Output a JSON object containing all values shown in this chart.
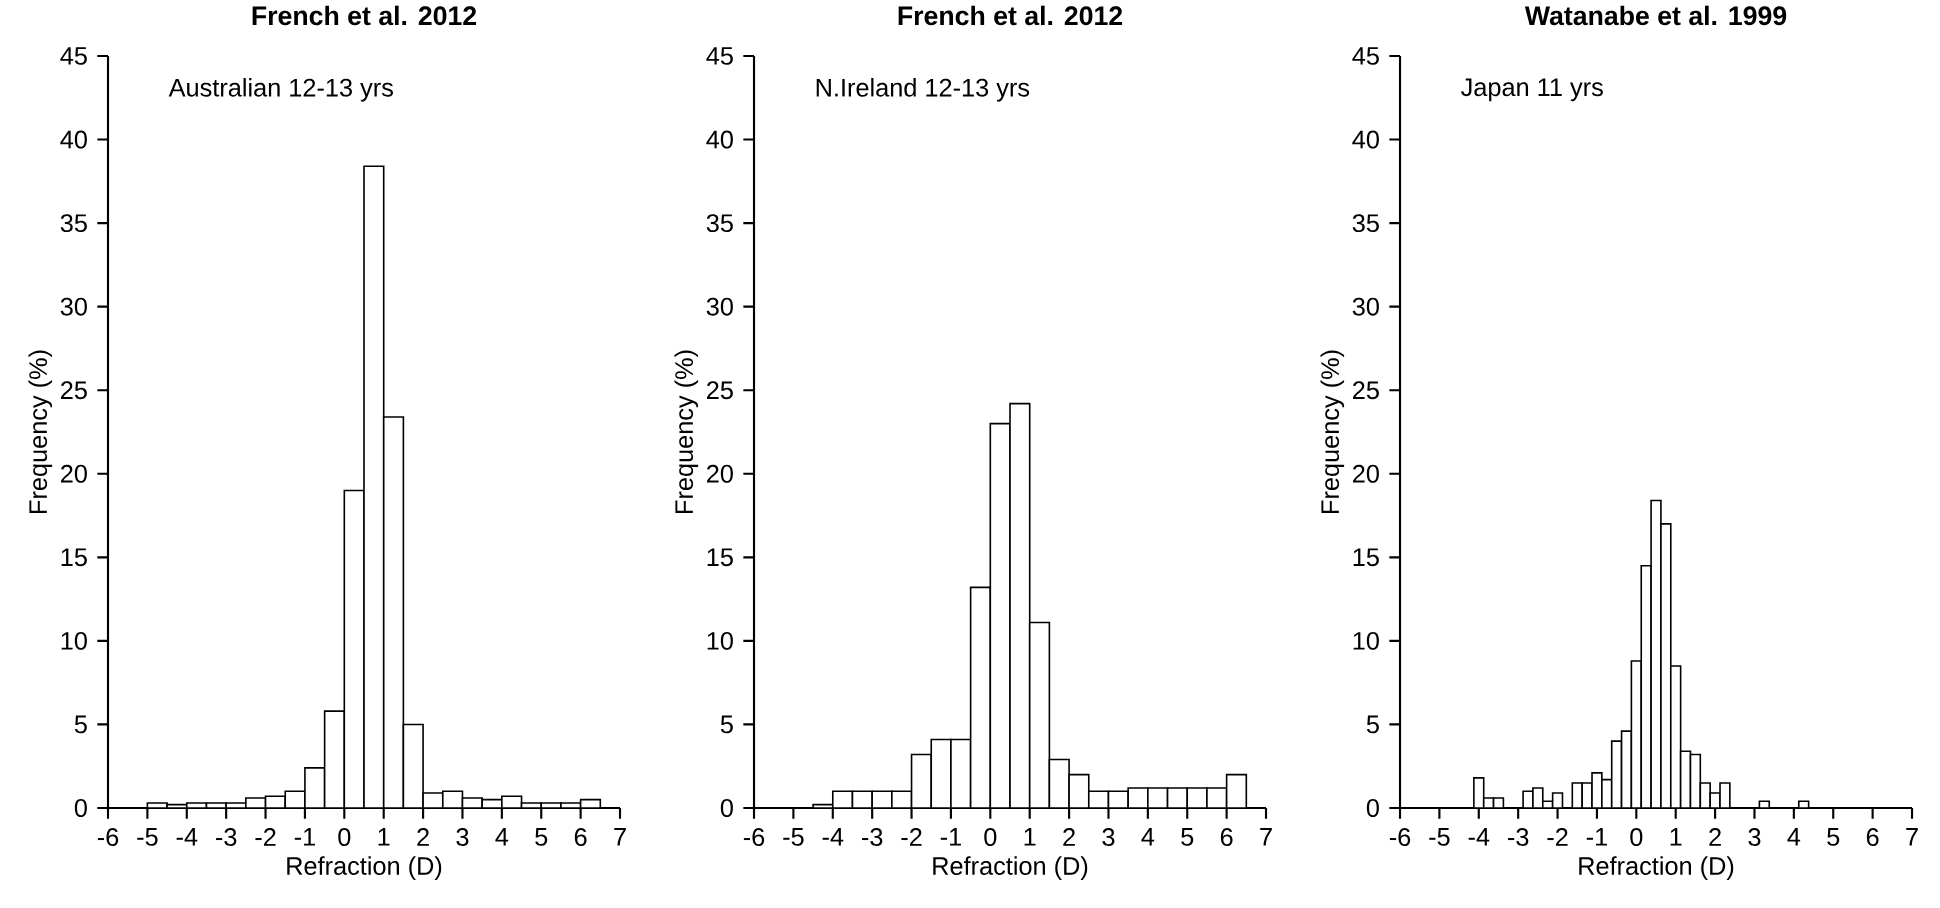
{
  "chart_data": [
    {
      "type": "histogram",
      "title": "French et al. 2012",
      "annotations": [
        "Australian 12-13 yrs"
      ],
      "xlabel": "Refraction (D)",
      "ylabel": "Frequency (%)",
      "color": "#ffffff",
      "bins": [
        -5,
        -4.5,
        -4,
        -3.5,
        -3,
        -2.5,
        -2,
        -1.5,
        -1,
        -0.5,
        0,
        0.5,
        1,
        1.5,
        2,
        2.5,
        3,
        3.5,
        4,
        4.5,
        5,
        5.5,
        6,
        6.5
      ],
      "values": [
        0.3,
        0.2,
        0.3,
        0.3,
        0.3,
        0.6,
        0.7,
        1.0,
        2.4,
        5.8,
        19.0,
        38.4,
        23.4,
        5.0,
        0.9,
        1.0,
        0.6,
        0.5,
        0.7,
        0.3,
        0.3,
        0.3,
        0.5
      ],
      "xlim": [
        -6,
        7
      ],
      "ylim": [
        0,
        45
      ],
      "xticks": [
        -6,
        -5,
        -4,
        -3,
        -2,
        -1,
        0,
        1,
        2,
        3,
        4,
        5,
        6,
        7
      ],
      "yticks": [
        0,
        5,
        10,
        15,
        20,
        25,
        30,
        35,
        40,
        45
      ]
    },
    {
      "type": "histogram",
      "title": "French et al. 2012",
      "annotations": [
        "N.Ireland 12-13 yrs"
      ],
      "xlabel": "Refraction (D)",
      "ylabel": "Frequency (%)",
      "color": "#ffffff",
      "bins": [
        -4.5,
        -4,
        -3.5,
        -3,
        -2.5,
        -2,
        -1.5,
        -1,
        -0.5,
        0,
        0.5,
        1,
        1.5,
        2,
        2.5,
        3,
        3.5,
        4,
        4.5,
        5,
        5.5,
        6,
        6.5
      ],
      "values": [
        0.2,
        1.0,
        1.0,
        1.0,
        1.0,
        3.2,
        4.1,
        4.1,
        13.2,
        23.0,
        24.2,
        11.1,
        2.9,
        2.0,
        1.0,
        1.0,
        1.2,
        1.2,
        1.2,
        1.2,
        1.2,
        2.0
      ],
      "xlim": [
        -6,
        7
      ],
      "ylim": [
        0,
        45
      ],
      "xticks": [
        -6,
        -5,
        -4,
        -3,
        -2,
        -1,
        0,
        1,
        2,
        3,
        4,
        5,
        6,
        7
      ],
      "yticks": [
        0,
        5,
        10,
        15,
        20,
        25,
        30,
        35,
        40,
        45
      ]
    },
    {
      "type": "histogram",
      "title": "Watanabe et al. 1999",
      "annotations": [
        "Japan 11 yrs"
      ],
      "xlabel": "Refraction (D)",
      "ylabel": "Frequency (%)",
      "color": "#ffffff",
      "bins": [
        -4.125,
        -3.875,
        -3.625,
        -3.375,
        -3.125,
        -2.875,
        -2.625,
        -2.375,
        -2.125,
        -1.875,
        -1.625,
        -1.375,
        -1.125,
        -0.875,
        -0.625,
        -0.375,
        -0.125,
        0.125,
        0.375,
        0.625,
        0.875,
        1.125,
        1.375,
        1.625,
        1.875,
        2.125,
        2.375,
        2.625,
        2.875,
        3.125,
        3.375,
        3.625,
        3.875,
        4.125,
        4.375
      ],
      "values": [
        1.8,
        0.6,
        0.6,
        0,
        0,
        1.0,
        1.2,
        0.4,
        0.9,
        0,
        1.5,
        1.5,
        2.1,
        1.7,
        4.0,
        4.6,
        8.8,
        14.5,
        18.4,
        17.0,
        8.5,
        3.4,
        3.2,
        1.5,
        0.9,
        1.5,
        0,
        0,
        0,
        0.4,
        0,
        0,
        0,
        0.4
      ],
      "xlim": [
        -6,
        7
      ],
      "ylim": [
        0,
        45
      ],
      "xticks": [
        -6,
        -5,
        -4,
        -3,
        -2,
        -1,
        0,
        1,
        2,
        3,
        4,
        5,
        6,
        7
      ],
      "yticks": [
        0,
        5,
        10,
        15,
        20,
        25,
        30,
        35,
        40,
        45
      ]
    }
  ]
}
